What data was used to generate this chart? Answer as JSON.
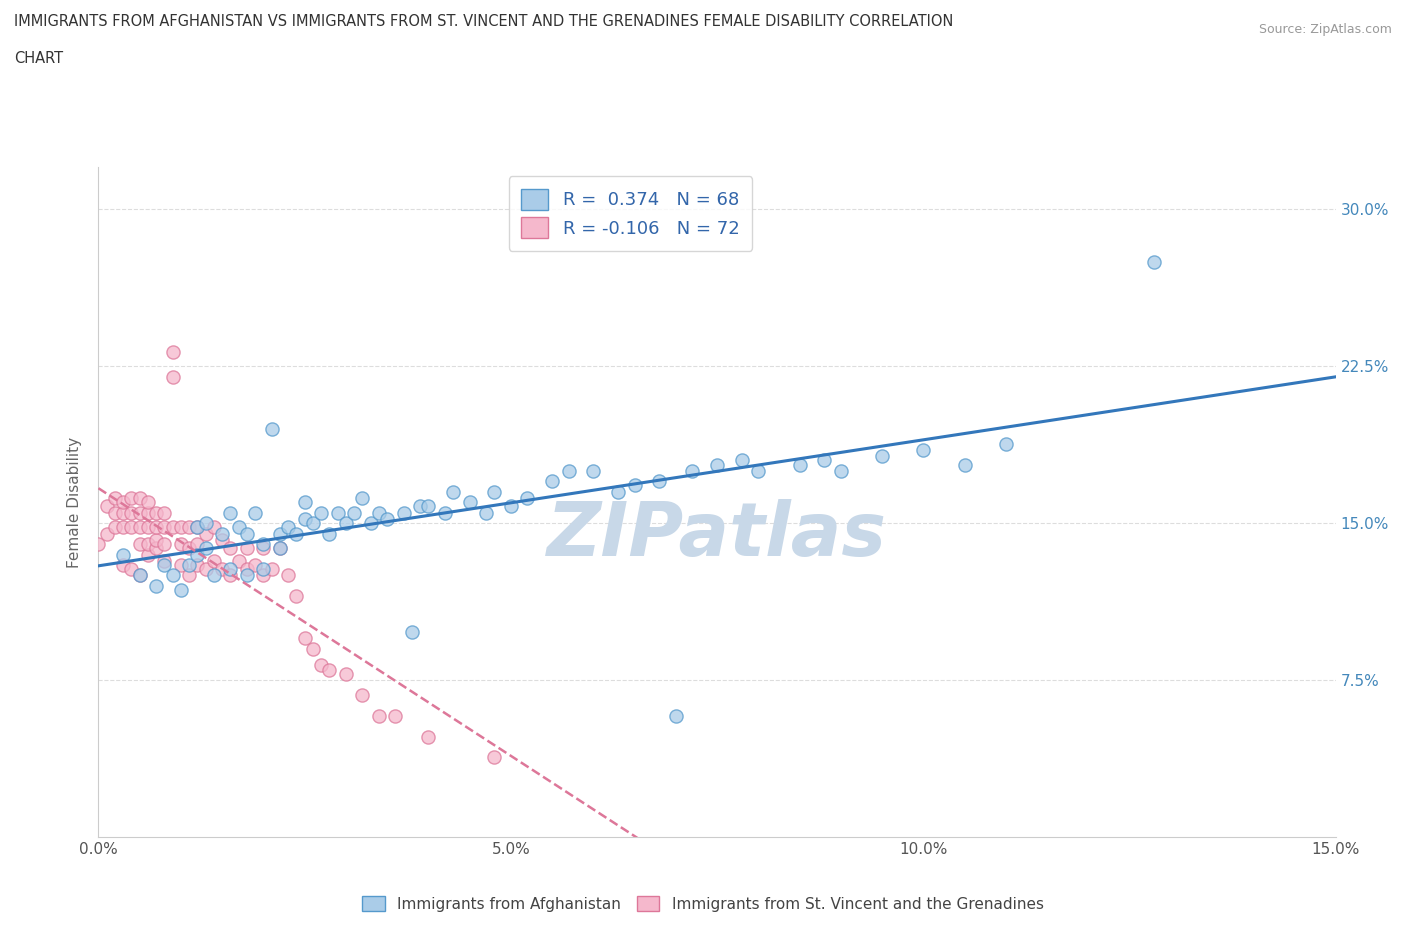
{
  "title_line1": "IMMIGRANTS FROM AFGHANISTAN VS IMMIGRANTS FROM ST. VINCENT AND THE GRENADINES FEMALE DISABILITY CORRELATION",
  "title_line2": "CHART",
  "source": "Source: ZipAtlas.com",
  "ylabel": "Female Disability",
  "xlim": [
    0.0,
    0.15
  ],
  "ylim": [
    0.0,
    0.32
  ],
  "xtick_vals": [
    0.0,
    0.05,
    0.1,
    0.15
  ],
  "xtick_labels": [
    "0.0%",
    "5.0%",
    "10.0%",
    "15.0%"
  ],
  "ytick_vals": [
    0.075,
    0.15,
    0.225,
    0.3
  ],
  "ytick_labels": [
    "7.5%",
    "15.0%",
    "22.5%",
    "30.0%"
  ],
  "R_blue": 0.374,
  "N_blue": 68,
  "R_pink": -0.106,
  "N_pink": 72,
  "color_blue_fill": "#AACCE8",
  "color_blue_edge": "#5599CC",
  "color_blue_line": "#3377BB",
  "color_pink_fill": "#F5B8CC",
  "color_pink_edge": "#DD7799",
  "color_pink_line": "#DD7799",
  "legend_label_blue": "Immigrants from Afghanistan",
  "legend_label_pink": "Immigrants from St. Vincent and the Grenadines",
  "watermark": "ZIPatlas",
  "watermark_color": "#C8D8E8",
  "grid_color": "#DDDDDD",
  "blue_scatter_x": [
    0.003,
    0.005,
    0.007,
    0.008,
    0.009,
    0.01,
    0.011,
    0.012,
    0.012,
    0.013,
    0.013,
    0.014,
    0.015,
    0.016,
    0.016,
    0.017,
    0.018,
    0.018,
    0.019,
    0.02,
    0.02,
    0.021,
    0.022,
    0.022,
    0.023,
    0.024,
    0.025,
    0.025,
    0.026,
    0.027,
    0.028,
    0.029,
    0.03,
    0.031,
    0.032,
    0.033,
    0.034,
    0.035,
    0.037,
    0.038,
    0.039,
    0.04,
    0.042,
    0.043,
    0.045,
    0.047,
    0.048,
    0.05,
    0.052,
    0.055,
    0.057,
    0.06,
    0.063,
    0.065,
    0.068,
    0.07,
    0.072,
    0.075,
    0.078,
    0.08,
    0.085,
    0.088,
    0.09,
    0.095,
    0.1,
    0.105,
    0.11,
    0.128
  ],
  "blue_scatter_y": [
    0.135,
    0.125,
    0.12,
    0.13,
    0.125,
    0.118,
    0.13,
    0.135,
    0.148,
    0.138,
    0.15,
    0.125,
    0.145,
    0.128,
    0.155,
    0.148,
    0.145,
    0.125,
    0.155,
    0.14,
    0.128,
    0.195,
    0.138,
    0.145,
    0.148,
    0.145,
    0.152,
    0.16,
    0.15,
    0.155,
    0.145,
    0.155,
    0.15,
    0.155,
    0.162,
    0.15,
    0.155,
    0.152,
    0.155,
    0.098,
    0.158,
    0.158,
    0.155,
    0.165,
    0.16,
    0.155,
    0.165,
    0.158,
    0.162,
    0.17,
    0.175,
    0.175,
    0.165,
    0.168,
    0.17,
    0.058,
    0.175,
    0.178,
    0.18,
    0.175,
    0.178,
    0.18,
    0.175,
    0.182,
    0.185,
    0.178,
    0.188,
    0.275
  ],
  "pink_scatter_x": [
    0.0,
    0.001,
    0.001,
    0.002,
    0.002,
    0.002,
    0.003,
    0.003,
    0.003,
    0.003,
    0.004,
    0.004,
    0.004,
    0.004,
    0.005,
    0.005,
    0.005,
    0.005,
    0.005,
    0.006,
    0.006,
    0.006,
    0.006,
    0.006,
    0.007,
    0.007,
    0.007,
    0.007,
    0.008,
    0.008,
    0.008,
    0.008,
    0.009,
    0.009,
    0.009,
    0.01,
    0.01,
    0.01,
    0.011,
    0.011,
    0.011,
    0.012,
    0.012,
    0.012,
    0.013,
    0.013,
    0.014,
    0.014,
    0.015,
    0.015,
    0.016,
    0.016,
    0.017,
    0.018,
    0.018,
    0.019,
    0.02,
    0.02,
    0.021,
    0.022,
    0.023,
    0.024,
    0.025,
    0.026,
    0.027,
    0.028,
    0.03,
    0.032,
    0.034,
    0.036,
    0.04,
    0.048
  ],
  "pink_scatter_y": [
    0.14,
    0.145,
    0.158,
    0.148,
    0.155,
    0.162,
    0.13,
    0.148,
    0.155,
    0.16,
    0.128,
    0.148,
    0.155,
    0.162,
    0.125,
    0.14,
    0.148,
    0.155,
    0.162,
    0.135,
    0.14,
    0.148,
    0.155,
    0.16,
    0.138,
    0.142,
    0.148,
    0.155,
    0.132,
    0.14,
    0.148,
    0.155,
    0.22,
    0.232,
    0.148,
    0.13,
    0.14,
    0.148,
    0.125,
    0.138,
    0.148,
    0.13,
    0.14,
    0.148,
    0.128,
    0.145,
    0.132,
    0.148,
    0.128,
    0.142,
    0.125,
    0.138,
    0.132,
    0.128,
    0.138,
    0.13,
    0.125,
    0.138,
    0.128,
    0.138,
    0.125,
    0.115,
    0.095,
    0.09,
    0.082,
    0.08,
    0.078,
    0.068,
    0.058,
    0.058,
    0.048,
    0.038
  ]
}
